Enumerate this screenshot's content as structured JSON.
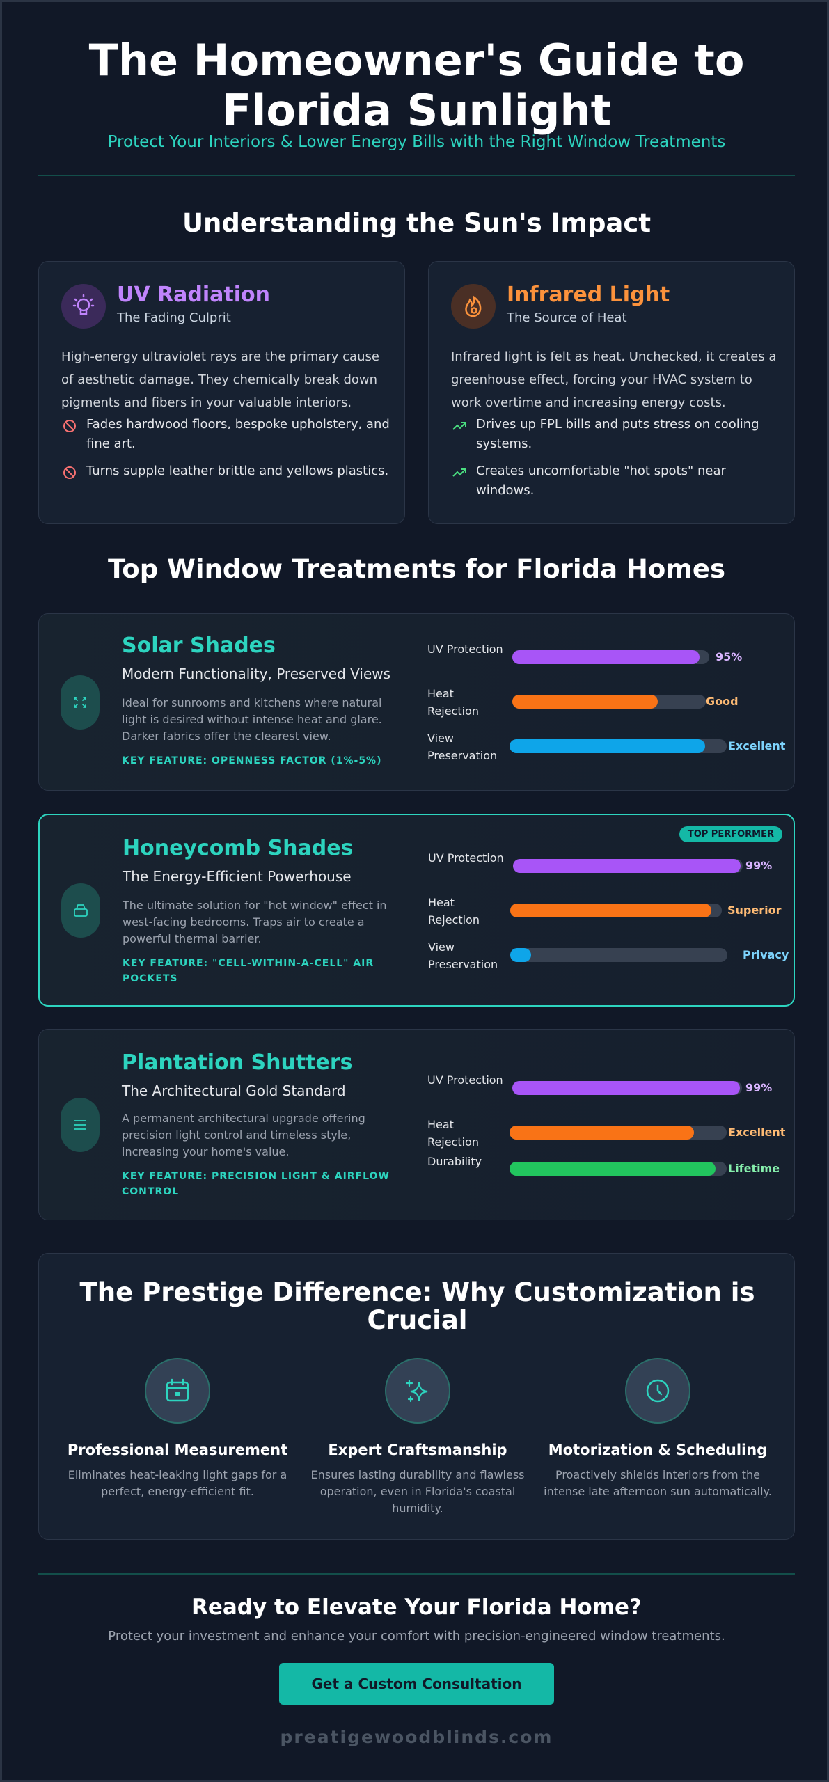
{
  "header": {
    "title_line1": "The Homeowner's Guide to",
    "title_line2": "Florida Sunlight",
    "subtitle": "Protect Your Interiors & Lower Energy Bills with the Right Window Treatments"
  },
  "impact": {
    "heading": "Understanding the Sun's Impact",
    "cards": [
      {
        "title": "UV Radiation",
        "subtitle": "The Fading Culprit",
        "body": "High-energy ultraviolet rays are the primary cause of aesthetic damage. They chemically break down pigments and fibers in your valuable interiors.",
        "bullets": [
          "Fades hardwood floors, bespoke upholstery, and fine art.",
          "Turns supple leather brittle and yellows plastics."
        ],
        "icon": "lightbulb-icon",
        "bullet_icon": "ban-icon",
        "color": "#c084fc"
      },
      {
        "title": "Infrared Light",
        "subtitle": "The Source of Heat",
        "body": "Infrared light is felt as heat. Unchecked, it creates a greenhouse effect, forcing your HVAC system to work overtime and increasing energy costs.",
        "bullets": [
          "Drives up FPL bills and puts stress on cooling systems.",
          "Creates uncomfortable \"hot spots\" near windows."
        ],
        "icon": "flame-icon",
        "bullet_icon": "trending-up-icon",
        "color": "#fb923c"
      }
    ]
  },
  "treatments": {
    "heading": "Top Window Treatments for Florida Homes",
    "items": [
      {
        "name": "Solar Shades",
        "tagline": "Modern Functionality, Preserved Views",
        "description": "Ideal for sunrooms and kitchens where natural light is desired without intense heat and glare. Darker fabrics offer the clearest view.",
        "key_feature": "KEY FEATURE: OPENNESS FACTOR (1%-5%)",
        "icon": "expand-icon",
        "badge": "",
        "metrics": [
          {
            "label": "UV Protection",
            "value": "95%",
            "level": 0.95
          },
          {
            "label": "Heat Rejection",
            "value": "Good",
            "level": 0.75
          },
          {
            "label": "View Preservation",
            "value": "Excellent",
            "level": 0.9
          }
        ]
      },
      {
        "name": "Honeycomb Shades",
        "tagline": "The Energy-Efficient Powerhouse",
        "description": "The ultimate solution for \"hot window\" effect in west-facing bedrooms. Traps air to create a powerful thermal barrier.",
        "key_feature": "KEY FEATURE: \"CELL-WITHIN-A-CELL\" AIR POCKETS",
        "icon": "layers-icon",
        "badge": "TOP PERFORMER",
        "metrics": [
          {
            "label": "UV Protection",
            "value": "99%",
            "level": 0.99
          },
          {
            "label": "Heat Rejection",
            "value": "Superior",
            "level": 0.95
          },
          {
            "label": "View Preservation",
            "value": "Privacy",
            "level": 0.1
          }
        ]
      },
      {
        "name": "Plantation Shutters",
        "tagline": "The Architectural Gold Standard",
        "description": "A permanent architectural upgrade offering precision light control and timeless style, increasing your home's value.",
        "key_feature": "KEY FEATURE: PRECISION LIGHT & AIRFLOW CONTROL",
        "icon": "menu-lines-icon",
        "badge": "",
        "metrics": [
          {
            "label": "UV Protection",
            "value": "99%",
            "level": 0.99
          },
          {
            "label": "Heat Rejection",
            "value": "Excellent",
            "level": 0.85
          },
          {
            "label": "Durability",
            "value": "Lifetime",
            "level": 0.95
          }
        ]
      }
    ],
    "metric_colors": [
      "#a855f7",
      "#f97316",
      "#0ea5e9"
    ],
    "durability_color": "#22c55e",
    "value_colors": [
      "#d8b4fe",
      "#fdba74",
      "#7dd3fc"
    ],
    "durability_value_color": "#86efac"
  },
  "prestige": {
    "heading": "The Prestige Difference: Why Customization is Crucial",
    "features": [
      {
        "title": "Professional Measurement",
        "description": "Eliminates heat-leaking light gaps for a perfect, energy-efficient fit.",
        "icon": "calendar-icon"
      },
      {
        "title": "Expert Craftsmanship",
        "description": "Ensures lasting durability and flawless operation, even in Florida's coastal humidity.",
        "icon": "sparkles-icon"
      },
      {
        "title": "Motorization & Scheduling",
        "description": "Proactively shields interiors from the intense late afternoon sun automatically.",
        "icon": "clock-icon"
      }
    ]
  },
  "cta": {
    "heading": "Ready to Elevate Your Florida Home?",
    "subtext": "Protect your investment and enhance your comfort with precision-engineered window treatments.",
    "button": "Get a Custom Consultation"
  },
  "footer": {
    "site": "preatigewoodblinds.com"
  }
}
